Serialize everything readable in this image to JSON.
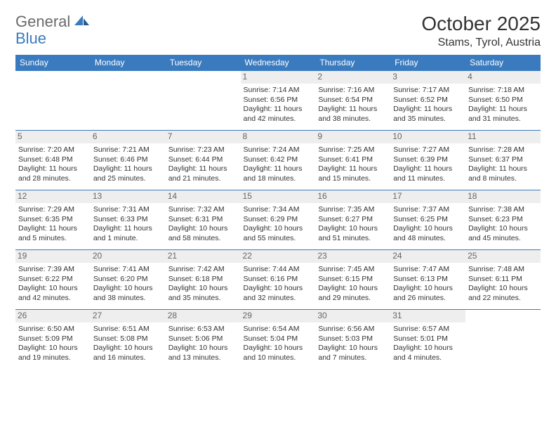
{
  "brand": {
    "part1": "General",
    "part2": "Blue"
  },
  "title": "October 2025",
  "location": "Stams, Tyrol, Austria",
  "colors": {
    "header_bg": "#3a7bbf",
    "header_text": "#ffffff",
    "daynum_bg": "#eeeeee",
    "daynum_text": "#666666",
    "border": "#3a7bbf",
    "body_text": "#333333",
    "logo_gray": "#6b6b6b",
    "logo_blue": "#3a7bbf"
  },
  "weekdays": [
    "Sunday",
    "Monday",
    "Tuesday",
    "Wednesday",
    "Thursday",
    "Friday",
    "Saturday"
  ],
  "weeks": [
    [
      null,
      null,
      null,
      {
        "n": "1",
        "sr": "7:14 AM",
        "ss": "6:56 PM",
        "dl": "11 hours and 42 minutes."
      },
      {
        "n": "2",
        "sr": "7:16 AM",
        "ss": "6:54 PM",
        "dl": "11 hours and 38 minutes."
      },
      {
        "n": "3",
        "sr": "7:17 AM",
        "ss": "6:52 PM",
        "dl": "11 hours and 35 minutes."
      },
      {
        "n": "4",
        "sr": "7:18 AM",
        "ss": "6:50 PM",
        "dl": "11 hours and 31 minutes."
      }
    ],
    [
      {
        "n": "5",
        "sr": "7:20 AM",
        "ss": "6:48 PM",
        "dl": "11 hours and 28 minutes."
      },
      {
        "n": "6",
        "sr": "7:21 AM",
        "ss": "6:46 PM",
        "dl": "11 hours and 25 minutes."
      },
      {
        "n": "7",
        "sr": "7:23 AM",
        "ss": "6:44 PM",
        "dl": "11 hours and 21 minutes."
      },
      {
        "n": "8",
        "sr": "7:24 AM",
        "ss": "6:42 PM",
        "dl": "11 hours and 18 minutes."
      },
      {
        "n": "9",
        "sr": "7:25 AM",
        "ss": "6:41 PM",
        "dl": "11 hours and 15 minutes."
      },
      {
        "n": "10",
        "sr": "7:27 AM",
        "ss": "6:39 PM",
        "dl": "11 hours and 11 minutes."
      },
      {
        "n": "11",
        "sr": "7:28 AM",
        "ss": "6:37 PM",
        "dl": "11 hours and 8 minutes."
      }
    ],
    [
      {
        "n": "12",
        "sr": "7:29 AM",
        "ss": "6:35 PM",
        "dl": "11 hours and 5 minutes."
      },
      {
        "n": "13",
        "sr": "7:31 AM",
        "ss": "6:33 PM",
        "dl": "11 hours and 1 minute."
      },
      {
        "n": "14",
        "sr": "7:32 AM",
        "ss": "6:31 PM",
        "dl": "10 hours and 58 minutes."
      },
      {
        "n": "15",
        "sr": "7:34 AM",
        "ss": "6:29 PM",
        "dl": "10 hours and 55 minutes."
      },
      {
        "n": "16",
        "sr": "7:35 AM",
        "ss": "6:27 PM",
        "dl": "10 hours and 51 minutes."
      },
      {
        "n": "17",
        "sr": "7:37 AM",
        "ss": "6:25 PM",
        "dl": "10 hours and 48 minutes."
      },
      {
        "n": "18",
        "sr": "7:38 AM",
        "ss": "6:23 PM",
        "dl": "10 hours and 45 minutes."
      }
    ],
    [
      {
        "n": "19",
        "sr": "7:39 AM",
        "ss": "6:22 PM",
        "dl": "10 hours and 42 minutes."
      },
      {
        "n": "20",
        "sr": "7:41 AM",
        "ss": "6:20 PM",
        "dl": "10 hours and 38 minutes."
      },
      {
        "n": "21",
        "sr": "7:42 AM",
        "ss": "6:18 PM",
        "dl": "10 hours and 35 minutes."
      },
      {
        "n": "22",
        "sr": "7:44 AM",
        "ss": "6:16 PM",
        "dl": "10 hours and 32 minutes."
      },
      {
        "n": "23",
        "sr": "7:45 AM",
        "ss": "6:15 PM",
        "dl": "10 hours and 29 minutes."
      },
      {
        "n": "24",
        "sr": "7:47 AM",
        "ss": "6:13 PM",
        "dl": "10 hours and 26 minutes."
      },
      {
        "n": "25",
        "sr": "7:48 AM",
        "ss": "6:11 PM",
        "dl": "10 hours and 22 minutes."
      }
    ],
    [
      {
        "n": "26",
        "sr": "6:50 AM",
        "ss": "5:09 PM",
        "dl": "10 hours and 19 minutes."
      },
      {
        "n": "27",
        "sr": "6:51 AM",
        "ss": "5:08 PM",
        "dl": "10 hours and 16 minutes."
      },
      {
        "n": "28",
        "sr": "6:53 AM",
        "ss": "5:06 PM",
        "dl": "10 hours and 13 minutes."
      },
      {
        "n": "29",
        "sr": "6:54 AM",
        "ss": "5:04 PM",
        "dl": "10 hours and 10 minutes."
      },
      {
        "n": "30",
        "sr": "6:56 AM",
        "ss": "5:03 PM",
        "dl": "10 hours and 7 minutes."
      },
      {
        "n": "31",
        "sr": "6:57 AM",
        "ss": "5:01 PM",
        "dl": "10 hours and 4 minutes."
      },
      null
    ]
  ],
  "labels": {
    "sunrise": "Sunrise:",
    "sunset": "Sunset:",
    "daylight": "Daylight:"
  }
}
